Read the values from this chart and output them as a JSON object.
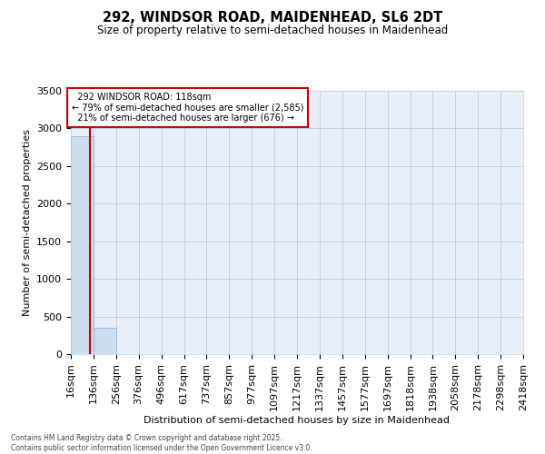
{
  "title": "292, WINDSOR ROAD, MAIDENHEAD, SL6 2DT",
  "subtitle": "Size of property relative to semi-detached houses in Maidenhead",
  "xlabel": "Distribution of semi-detached houses by size in Maidenhead",
  "ylabel": "Number of semi-detached properties",
  "property_size": 118,
  "property_label": "292 WINDSOR ROAD: 118sqm",
  "pct_smaller": 79,
  "count_smaller": 2585,
  "pct_larger": 21,
  "count_larger": 676,
  "bin_edges": [
    16,
    136,
    256,
    376,
    496,
    617,
    737,
    857,
    977,
    1097,
    1217,
    1337,
    1457,
    1577,
    1697,
    1818,
    1938,
    2058,
    2178,
    2298,
    2418
  ],
  "bin_counts": [
    2900,
    350,
    5,
    2,
    1,
    1,
    0,
    0,
    0,
    0,
    0,
    0,
    0,
    0,
    0,
    0,
    0,
    0,
    0,
    0
  ],
  "bar_color": "#ccddf0",
  "bar_edge_color": "#7bafd4",
  "background_color": "#e8eff9",
  "red_line_color": "#cc0000",
  "annotation_box_color": "#cc0000",
  "ylim": [
    0,
    3500
  ],
  "yticks": [
    0,
    500,
    1000,
    1500,
    2000,
    2500,
    3000,
    3500
  ],
  "grid_color": "#b0c4de",
  "footer_line1": "Contains HM Land Registry data © Crown copyright and database right 2025.",
  "footer_line2": "Contains public sector information licensed under the Open Government Licence v3.0."
}
